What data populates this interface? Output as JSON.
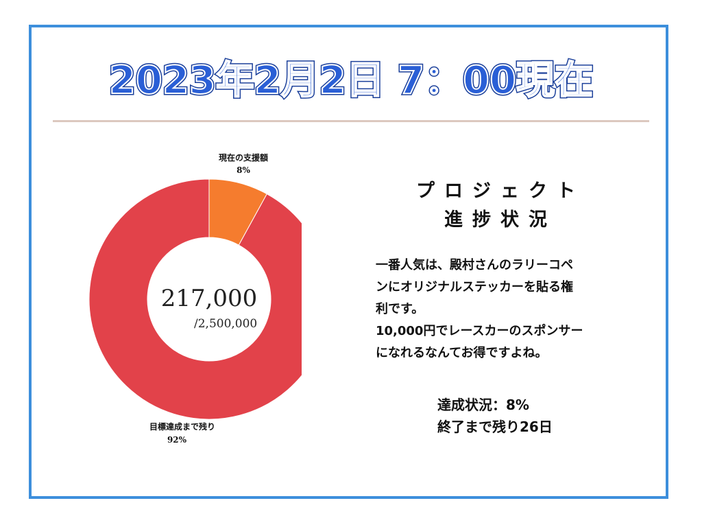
{
  "header": {
    "title": "2023年2月2日 7：00現在"
  },
  "chart_data": {
    "type": "pie",
    "donut": true,
    "categories": [
      "現在の支援額",
      "目標達成まで残り"
    ],
    "values": [
      8,
      92
    ],
    "value_labels": [
      "8%",
      "92%"
    ],
    "colors": [
      "#f57c2e",
      "#e2424a"
    ],
    "center_value": "217,000",
    "center_goal": "/2,500,000"
  },
  "project": {
    "title_line1": "プロジェクト",
    "title_line2": "進捗状況",
    "description_lines": [
      "一番人気は、殿村さんのラリーコペ",
      "ンにオリジナルステッカーを貼る権",
      "利です。",
      "10,000円でレースカーのスポンサー",
      "になれるなんてお得ですよね。"
    ],
    "status_line1": "達成状況：8%",
    "status_line2": "終了まで残り26日"
  },
  "colors": {
    "frame": "#3d8fdc",
    "title_fill": "#2a5fd6",
    "title_outline": "#1a3f9a",
    "divider": "#dcc8bf",
    "accent_orange": "#f57c2e",
    "accent_red": "#e2424a"
  }
}
